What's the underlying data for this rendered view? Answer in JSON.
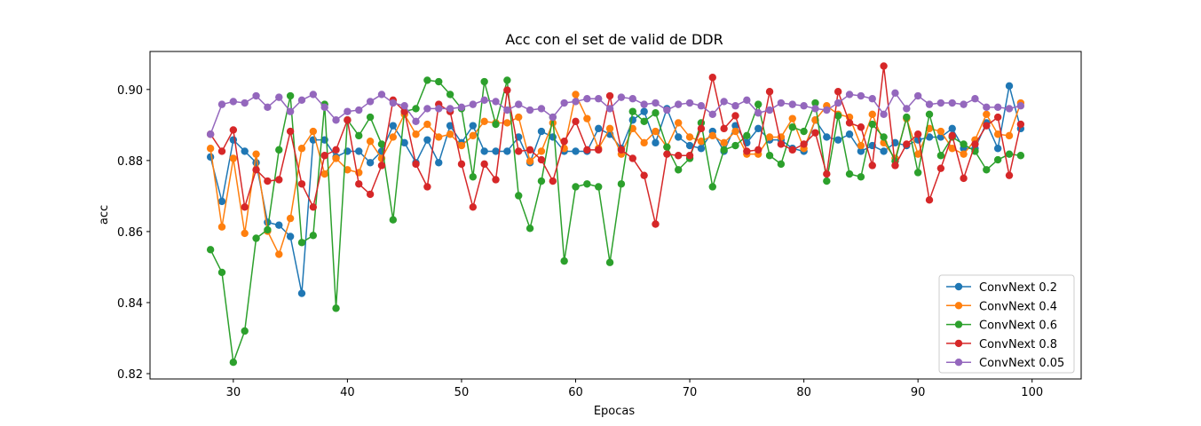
{
  "chart_data": {
    "type": "line",
    "title": "Acc con el set de valid de DDR",
    "xlabel": "Epocas",
    "ylabel": "acc",
    "xlim": [
      22.7,
      104.3
    ],
    "ylim": [
      0.8185,
      0.9107
    ],
    "xticks": [
      30,
      40,
      50,
      60,
      70,
      80,
      90,
      100
    ],
    "yticks": [
      0.82,
      0.84,
      0.86,
      0.88,
      0.9
    ],
    "ytick_labels": [
      "0.82",
      "0.84",
      "0.86",
      "0.88",
      "0.90"
    ],
    "legend_position": "lower-right",
    "grid": false,
    "x_start": 28,
    "series": [
      {
        "name": "ConvNext 0.2",
        "color": "#1f77b4",
        "values": [
          0.881,
          0.8685,
          0.8858,
          0.8826,
          0.8794,
          0.8626,
          0.8618,
          0.8586,
          0.8426,
          0.8858,
          0.8858,
          0.881,
          0.8826,
          0.8826,
          0.8794,
          0.8826,
          0.8898,
          0.885,
          0.8794,
          0.8858,
          0.8794,
          0.8898,
          0.885,
          0.8898,
          0.8826,
          0.8826,
          0.8826,
          0.8866,
          0.8794,
          0.8882,
          0.8866,
          0.8826,
          0.8826,
          0.8826,
          0.889,
          0.8874,
          0.8834,
          0.8914,
          0.8938,
          0.885,
          0.8946,
          0.8866,
          0.8842,
          0.8834,
          0.8882,
          0.8826,
          0.8898,
          0.885,
          0.889,
          0.8858,
          0.8858,
          0.8834,
          0.8826,
          0.8914,
          0.8866,
          0.8858,
          0.8874,
          0.8826,
          0.8842,
          0.8826,
          0.885,
          0.8842,
          0.8858,
          0.8866,
          0.8866,
          0.889,
          0.8834,
          0.8834,
          0.8906,
          0.8834,
          0.901,
          0.889
        ]
      },
      {
        "name": "ConvNext 0.4",
        "color": "#ff7f0e",
        "values": [
          0.8834,
          0.8613,
          0.8806,
          0.8595,
          0.8818,
          0.8601,
          0.8536,
          0.8637,
          0.8834,
          0.8882,
          0.8762,
          0.8806,
          0.8774,
          0.8766,
          0.8854,
          0.8806,
          0.8866,
          0.893,
          0.8874,
          0.8902,
          0.8866,
          0.8874,
          0.8842,
          0.887,
          0.891,
          0.8906,
          0.8906,
          0.8922,
          0.8798,
          0.8826,
          0.8906,
          0.8834,
          0.8986,
          0.8918,
          0.8834,
          0.889,
          0.8818,
          0.889,
          0.885,
          0.8882,
          0.8838,
          0.8906,
          0.8866,
          0.8854,
          0.887,
          0.885,
          0.8882,
          0.8818,
          0.8818,
          0.8866,
          0.8866,
          0.8918,
          0.8834,
          0.8914,
          0.8954,
          0.893,
          0.8922,
          0.8842,
          0.893,
          0.885,
          0.8806,
          0.8918,
          0.8818,
          0.889,
          0.8882,
          0.8834,
          0.8818,
          0.8858,
          0.893,
          0.8874,
          0.887,
          0.8962
        ]
      },
      {
        "name": "ConvNext 0.6",
        "color": "#2ca02c",
        "values": [
          0.8549,
          0.8485,
          0.8232,
          0.832,
          0.8581,
          0.8605,
          0.883,
          0.8982,
          0.8569,
          0.8589,
          0.8958,
          0.8384,
          0.8914,
          0.887,
          0.8922,
          0.8846,
          0.8633,
          0.8938,
          0.8946,
          0.9026,
          0.9022,
          0.8986,
          0.8946,
          0.8754,
          0.9022,
          0.8902,
          0.9026,
          0.8701,
          0.8609,
          0.8742,
          0.8922,
          0.8517,
          0.8726,
          0.8734,
          0.8726,
          0.8513,
          0.8734,
          0.8938,
          0.891,
          0.8934,
          0.8838,
          0.8774,
          0.8806,
          0.8906,
          0.8726,
          0.883,
          0.8842,
          0.887,
          0.8958,
          0.8814,
          0.879,
          0.8894,
          0.8882,
          0.8962,
          0.8742,
          0.8926,
          0.8762,
          0.8754,
          0.8902,
          0.8866,
          0.8798,
          0.8922,
          0.8766,
          0.893,
          0.8814,
          0.8866,
          0.8846,
          0.8826,
          0.8774,
          0.8802,
          0.8818,
          0.8814
        ]
      },
      {
        "name": "ConvNext 0.8",
        "color": "#d62728",
        "values": [
          0.8874,
          0.8826,
          0.8886,
          0.8669,
          0.8774,
          0.8742,
          0.8746,
          0.8882,
          0.8734,
          0.8669,
          0.8814,
          0.883,
          0.8914,
          0.8734,
          0.8705,
          0.8786,
          0.897,
          0.8938,
          0.879,
          0.8726,
          0.8958,
          0.8938,
          0.879,
          0.8669,
          0.879,
          0.8746,
          0.8998,
          0.8826,
          0.883,
          0.8802,
          0.8742,
          0.8854,
          0.891,
          0.883,
          0.883,
          0.8982,
          0.883,
          0.8806,
          0.8758,
          0.8621,
          0.8818,
          0.8814,
          0.8814,
          0.889,
          0.9034,
          0.889,
          0.8926,
          0.8826,
          0.883,
          0.8994,
          0.8846,
          0.883,
          0.8846,
          0.8878,
          0.8762,
          0.8994,
          0.8906,
          0.8894,
          0.8786,
          0.9066,
          0.8786,
          0.8846,
          0.8874,
          0.8689,
          0.8778,
          0.887,
          0.875,
          0.8846,
          0.8898,
          0.8922,
          0.8758,
          0.8902
        ]
      },
      {
        "name": "ConvNext 0.05",
        "color": "#9467bd",
        "values": [
          0.8874,
          0.8958,
          0.8966,
          0.8962,
          0.8982,
          0.895,
          0.8978,
          0.8938,
          0.897,
          0.8986,
          0.895,
          0.8914,
          0.8938,
          0.8942,
          0.8966,
          0.8986,
          0.8962,
          0.8954,
          0.891,
          0.8946,
          0.8946,
          0.8946,
          0.895,
          0.8958,
          0.897,
          0.8966,
          0.8942,
          0.8958,
          0.8942,
          0.8946,
          0.8922,
          0.8962,
          0.8966,
          0.8974,
          0.8974,
          0.8946,
          0.8978,
          0.8974,
          0.8958,
          0.8962,
          0.8942,
          0.8958,
          0.8962,
          0.8954,
          0.893,
          0.8966,
          0.8954,
          0.897,
          0.8934,
          0.8942,
          0.8962,
          0.8958,
          0.8954,
          0.8946,
          0.8942,
          0.8962,
          0.8986,
          0.8982,
          0.8974,
          0.893,
          0.899,
          0.8946,
          0.8982,
          0.8958,
          0.8962,
          0.8962,
          0.8958,
          0.8974,
          0.895,
          0.895,
          0.8946,
          0.8954
        ]
      }
    ]
  }
}
